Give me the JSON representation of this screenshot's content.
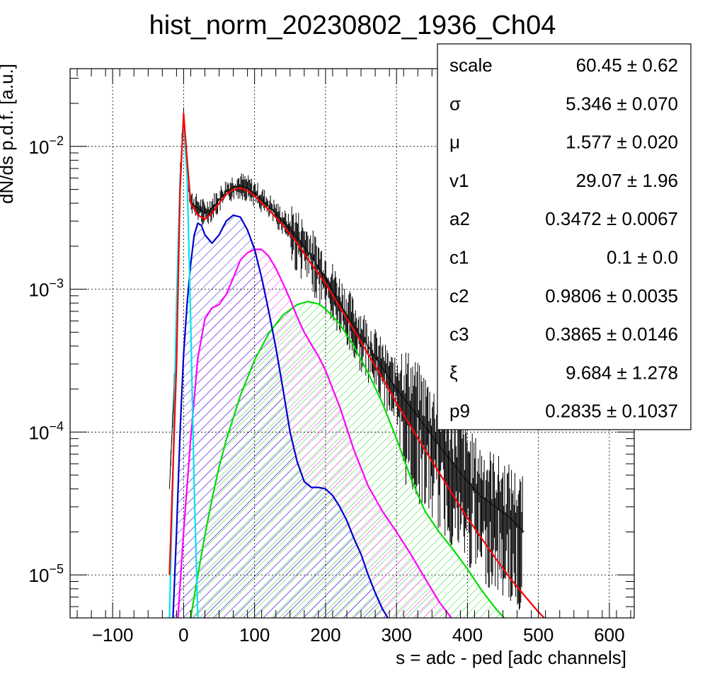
{
  "chart_data": {
    "type": "line",
    "title": "hist_norm_20230802_1936_Ch04",
    "xlabel": "s = adc - ped [adc channels]",
    "ylabel": "dN/ds p.d.f. [a.u.]",
    "xlim": [
      -160,
      635
    ],
    "ylim": [
      5e-06,
      0.035
    ],
    "yscale": "log",
    "grid": true,
    "x_ticks": [
      {
        "v": -100,
        "label": "−100"
      },
      {
        "v": 0,
        "label": "0"
      },
      {
        "v": 100,
        "label": "100"
      },
      {
        "v": 200,
        "label": "200"
      },
      {
        "v": 300,
        "label": "300"
      },
      {
        "v": 400,
        "label": "400"
      },
      {
        "v": 500,
        "label": "500"
      },
      {
        "v": 600,
        "label": "600"
      }
    ],
    "y_ticks": [
      {
        "v": 1e-05,
        "base": "10",
        "exp": "−5"
      },
      {
        "v": 0.0001,
        "base": "10",
        "exp": "−4"
      },
      {
        "v": 0.001,
        "base": "10",
        "exp": "−3"
      },
      {
        "v": 0.01,
        "base": "10",
        "exp": "−2"
      }
    ],
    "series": [
      {
        "color": "#000000",
        "kind": "histogram",
        "x": [
          -20,
          -10,
          -5,
          0,
          5,
          10,
          20,
          30,
          40,
          50,
          60,
          70,
          80,
          90,
          100,
          120,
          140,
          160,
          180,
          200,
          220,
          240,
          260,
          280,
          300,
          320,
          340,
          360,
          380,
          400,
          420,
          440,
          460,
          480
        ],
        "y": [
          4e-05,
          0.0005,
          0.006,
          0.016,
          0.008,
          0.004,
          0.0037,
          0.0034,
          0.0037,
          0.0042,
          0.0048,
          0.0052,
          0.0053,
          0.0051,
          0.0047,
          0.0038,
          0.003,
          0.0023,
          0.0017,
          0.0012,
          0.0008,
          0.00055,
          0.0004,
          0.00028,
          0.0002,
          0.00015,
          0.00011,
          8e-05,
          6e-05,
          4.5e-05,
          3.5e-05,
          3e-05,
          2.5e-05,
          2e-05
        ]
      },
      {
        "color": "#ff0000",
        "kind": "total-fit",
        "x": [
          -20,
          -10,
          -5,
          0,
          5,
          10,
          20,
          30,
          40,
          50,
          60,
          70,
          80,
          90,
          100,
          120,
          140,
          160,
          180,
          200,
          220,
          240,
          260,
          280,
          300,
          320,
          340,
          360,
          380,
          400,
          420,
          440,
          460,
          480,
          500,
          510
        ],
        "y": [
          1e-05,
          0.0003,
          0.005,
          0.017,
          0.008,
          0.004,
          0.0033,
          0.0031,
          0.0034,
          0.004,
          0.0046,
          0.005,
          0.0051,
          0.0049,
          0.0045,
          0.0036,
          0.0028,
          0.0021,
          0.0015,
          0.0011,
          0.00075,
          0.00052,
          0.00035,
          0.00024,
          0.00016,
          0.00011,
          7.5e-05,
          5.2e-05,
          3.6e-05,
          2.5e-05,
          1.8e-05,
          1.3e-05,
          9.5e-06,
          7.2e-06,
          5.5e-06,
          4.9e-06
        ]
      },
      {
        "color": "#00e5ee",
        "kind": "component-0",
        "x": [
          -20,
          -15,
          -10,
          -5,
          0,
          5,
          10,
          15,
          20
        ],
        "y": [
          5e-06,
          5e-05,
          0.0008,
          0.006,
          0.015,
          0.006,
          0.0006,
          4e-05,
          5e-06
        ]
      },
      {
        "color": "#0000cc",
        "kind": "component-1",
        "x": [
          -15,
          -10,
          -5,
          0,
          5,
          10,
          15,
          20,
          25,
          30,
          40,
          50,
          60,
          70,
          80,
          90,
          100,
          110,
          120,
          130,
          140,
          150,
          160,
          170,
          180,
          190,
          200,
          210,
          220,
          230,
          240,
          250,
          260,
          270,
          280,
          290
        ],
        "y": [
          5e-06,
          2e-05,
          0.0001,
          0.00035,
          0.0008,
          0.0015,
          0.0024,
          0.0029,
          0.0028,
          0.0024,
          0.0021,
          0.0024,
          0.003,
          0.0033,
          0.0032,
          0.0026,
          0.0019,
          0.0012,
          0.0007,
          0.00039,
          0.0002,
          0.0001,
          6.2e-05,
          4.5e-05,
          4.1e-05,
          4.1e-05,
          4e-05,
          3.6e-05,
          3e-05,
          2.4e-05,
          1.8e-05,
          1.4e-05,
          1e-05,
          7.5e-06,
          5.8e-06,
          4.8e-06
        ]
      },
      {
        "color": "#ff00ff",
        "kind": "component-2",
        "x": [
          -8,
          0,
          10,
          20,
          30,
          40,
          50,
          60,
          70,
          80,
          90,
          100,
          110,
          120,
          130,
          140,
          150,
          160,
          170,
          180,
          190,
          200,
          220,
          240,
          260,
          280,
          300,
          320,
          340,
          360,
          380
        ],
        "y": [
          5e-06,
          2e-05,
          9e-05,
          0.00033,
          0.00062,
          0.00074,
          0.00078,
          0.00092,
          0.0012,
          0.0016,
          0.0018,
          0.0019,
          0.0019,
          0.0017,
          0.0014,
          0.0011,
          0.00085,
          0.00064,
          0.0005,
          0.00041,
          0.00034,
          0.00027,
          0.00015,
          7.5e-05,
          4.2e-05,
          2.8e-05,
          2e-05,
          1.4e-05,
          9.5e-06,
          6.5e-06,
          4.8e-06
        ]
      },
      {
        "color": "#00dd00",
        "kind": "component-3",
        "x": [
          10,
          20,
          30,
          40,
          50,
          60,
          80,
          100,
          120,
          140,
          160,
          175,
          190,
          200,
          220,
          240,
          260,
          280,
          300,
          320,
          340,
          360,
          380,
          400,
          420,
          440,
          455
        ],
        "y": [
          5e-06,
          1e-05,
          1.9e-05,
          3.4e-05,
          5.7e-05,
          8.8e-05,
          0.00018,
          0.00032,
          0.00049,
          0.00066,
          0.00078,
          0.00082,
          0.00079,
          0.00073,
          0.00057,
          0.0004,
          0.00026,
          0.00016,
          9e-05,
          4.8e-05,
          2.8e-05,
          2e-05,
          1.5e-05,
          1.1e-05,
          7.8e-06,
          5.8e-06,
          4.8e-06
        ]
      }
    ],
    "stats": [
      {
        "name": "scale",
        "value": "60.45 ± 0.62"
      },
      {
        "name": "σ",
        "value": "5.346 ± 0.070"
      },
      {
        "name": "μ",
        "value": "1.577 ± 0.020"
      },
      {
        "name": "v1",
        "value": "29.07 ± 1.96"
      },
      {
        "name": "a2",
        "value": "0.3472 ± 0.0067"
      },
      {
        "name": "c1",
        "value": "0.1 ± 0.0"
      },
      {
        "name": "c2",
        "value": "0.9806 ± 0.0035"
      },
      {
        "name": "c3",
        "value": "0.3865 ± 0.0146"
      },
      {
        "name": "ξ",
        "value": "9.684 ± 1.278"
      },
      {
        "name": "p9",
        "value": "0.2835 ± 0.1037"
      }
    ]
  }
}
